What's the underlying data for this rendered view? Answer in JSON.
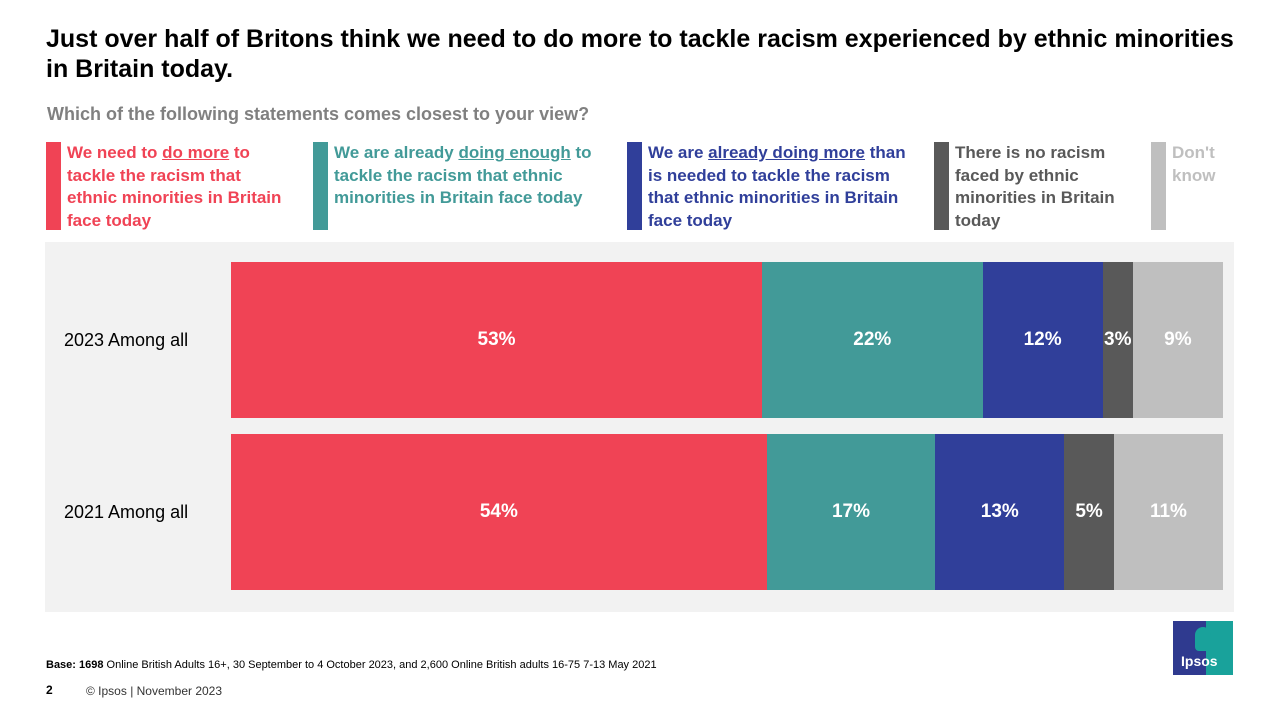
{
  "title": "Just over half of Britons think we need to do more to tackle racism experienced by ethnic minorities in Britain today.",
  "subtitle": "Which of the following  statements comes closest to your view?",
  "legend": [
    {
      "pre": "We need to ",
      "u": "do more",
      "post": " to tackle the racism that ethnic minorities in Britain face today",
      "color": "#f04355",
      "text_color": "#f04355"
    },
    {
      "pre": "We are already ",
      "u": "doing enough",
      "post": " to tackle the racism that ethnic minorities in Britain face today",
      "color": "#429a98",
      "text_color": "#429a98"
    },
    {
      "pre": "We are ",
      "u": "already doing more",
      "post": " than is needed to tackle the racism that ethnic minorities in Britain face today",
      "color": "#303f9a",
      "text_color": "#303f9a"
    },
    {
      "pre": "There is no racism faced by ethnic minorities in Britain today",
      "u": "",
      "post": "",
      "color": "#595959",
      "text_color": "#595959"
    },
    {
      "pre": "Don't know",
      "u": "",
      "post": "",
      "color": "#bfbfbf",
      "text_color": "#bfbfbf"
    }
  ],
  "chart_data": {
    "type": "bar",
    "orientation": "horizontal-stacked-100",
    "categories": [
      "2023 Among all",
      "2021 Among all"
    ],
    "series": [
      {
        "name": "We need to do more to tackle the racism that ethnic minorities in Britain face today",
        "values": [
          53,
          54
        ],
        "labels": [
          "53%",
          "54%"
        ]
      },
      {
        "name": "We are already doing enough to tackle the racism that ethnic minorities in Britain face today",
        "values": [
          22,
          17
        ],
        "labels": [
          "22%",
          "17%"
        ]
      },
      {
        "name": "We are already doing more than is needed to tackle the racism that ethnic minorities in Britain face today",
        "values": [
          12,
          13
        ],
        "labels": [
          "12%",
          "13%"
        ]
      },
      {
        "name": "There is no racism faced by ethnic minorities in Britain today",
        "values": [
          3,
          5
        ],
        "labels": [
          "3%",
          "5%"
        ]
      },
      {
        "name": "Don't know",
        "values": [
          9,
          11
        ],
        "labels": [
          "9%",
          "11%"
        ]
      }
    ],
    "grid": false
  },
  "footer": {
    "base_bold": "Base: 1698",
    "base_rest": " Online British Adults 16+, 30 September to 4 October 2023, and 2,600 Online British adults 16-75 7-13 May  2021",
    "page": "2",
    "copyright": "© Ipsos | November  2023",
    "logo": "Ipsos"
  }
}
